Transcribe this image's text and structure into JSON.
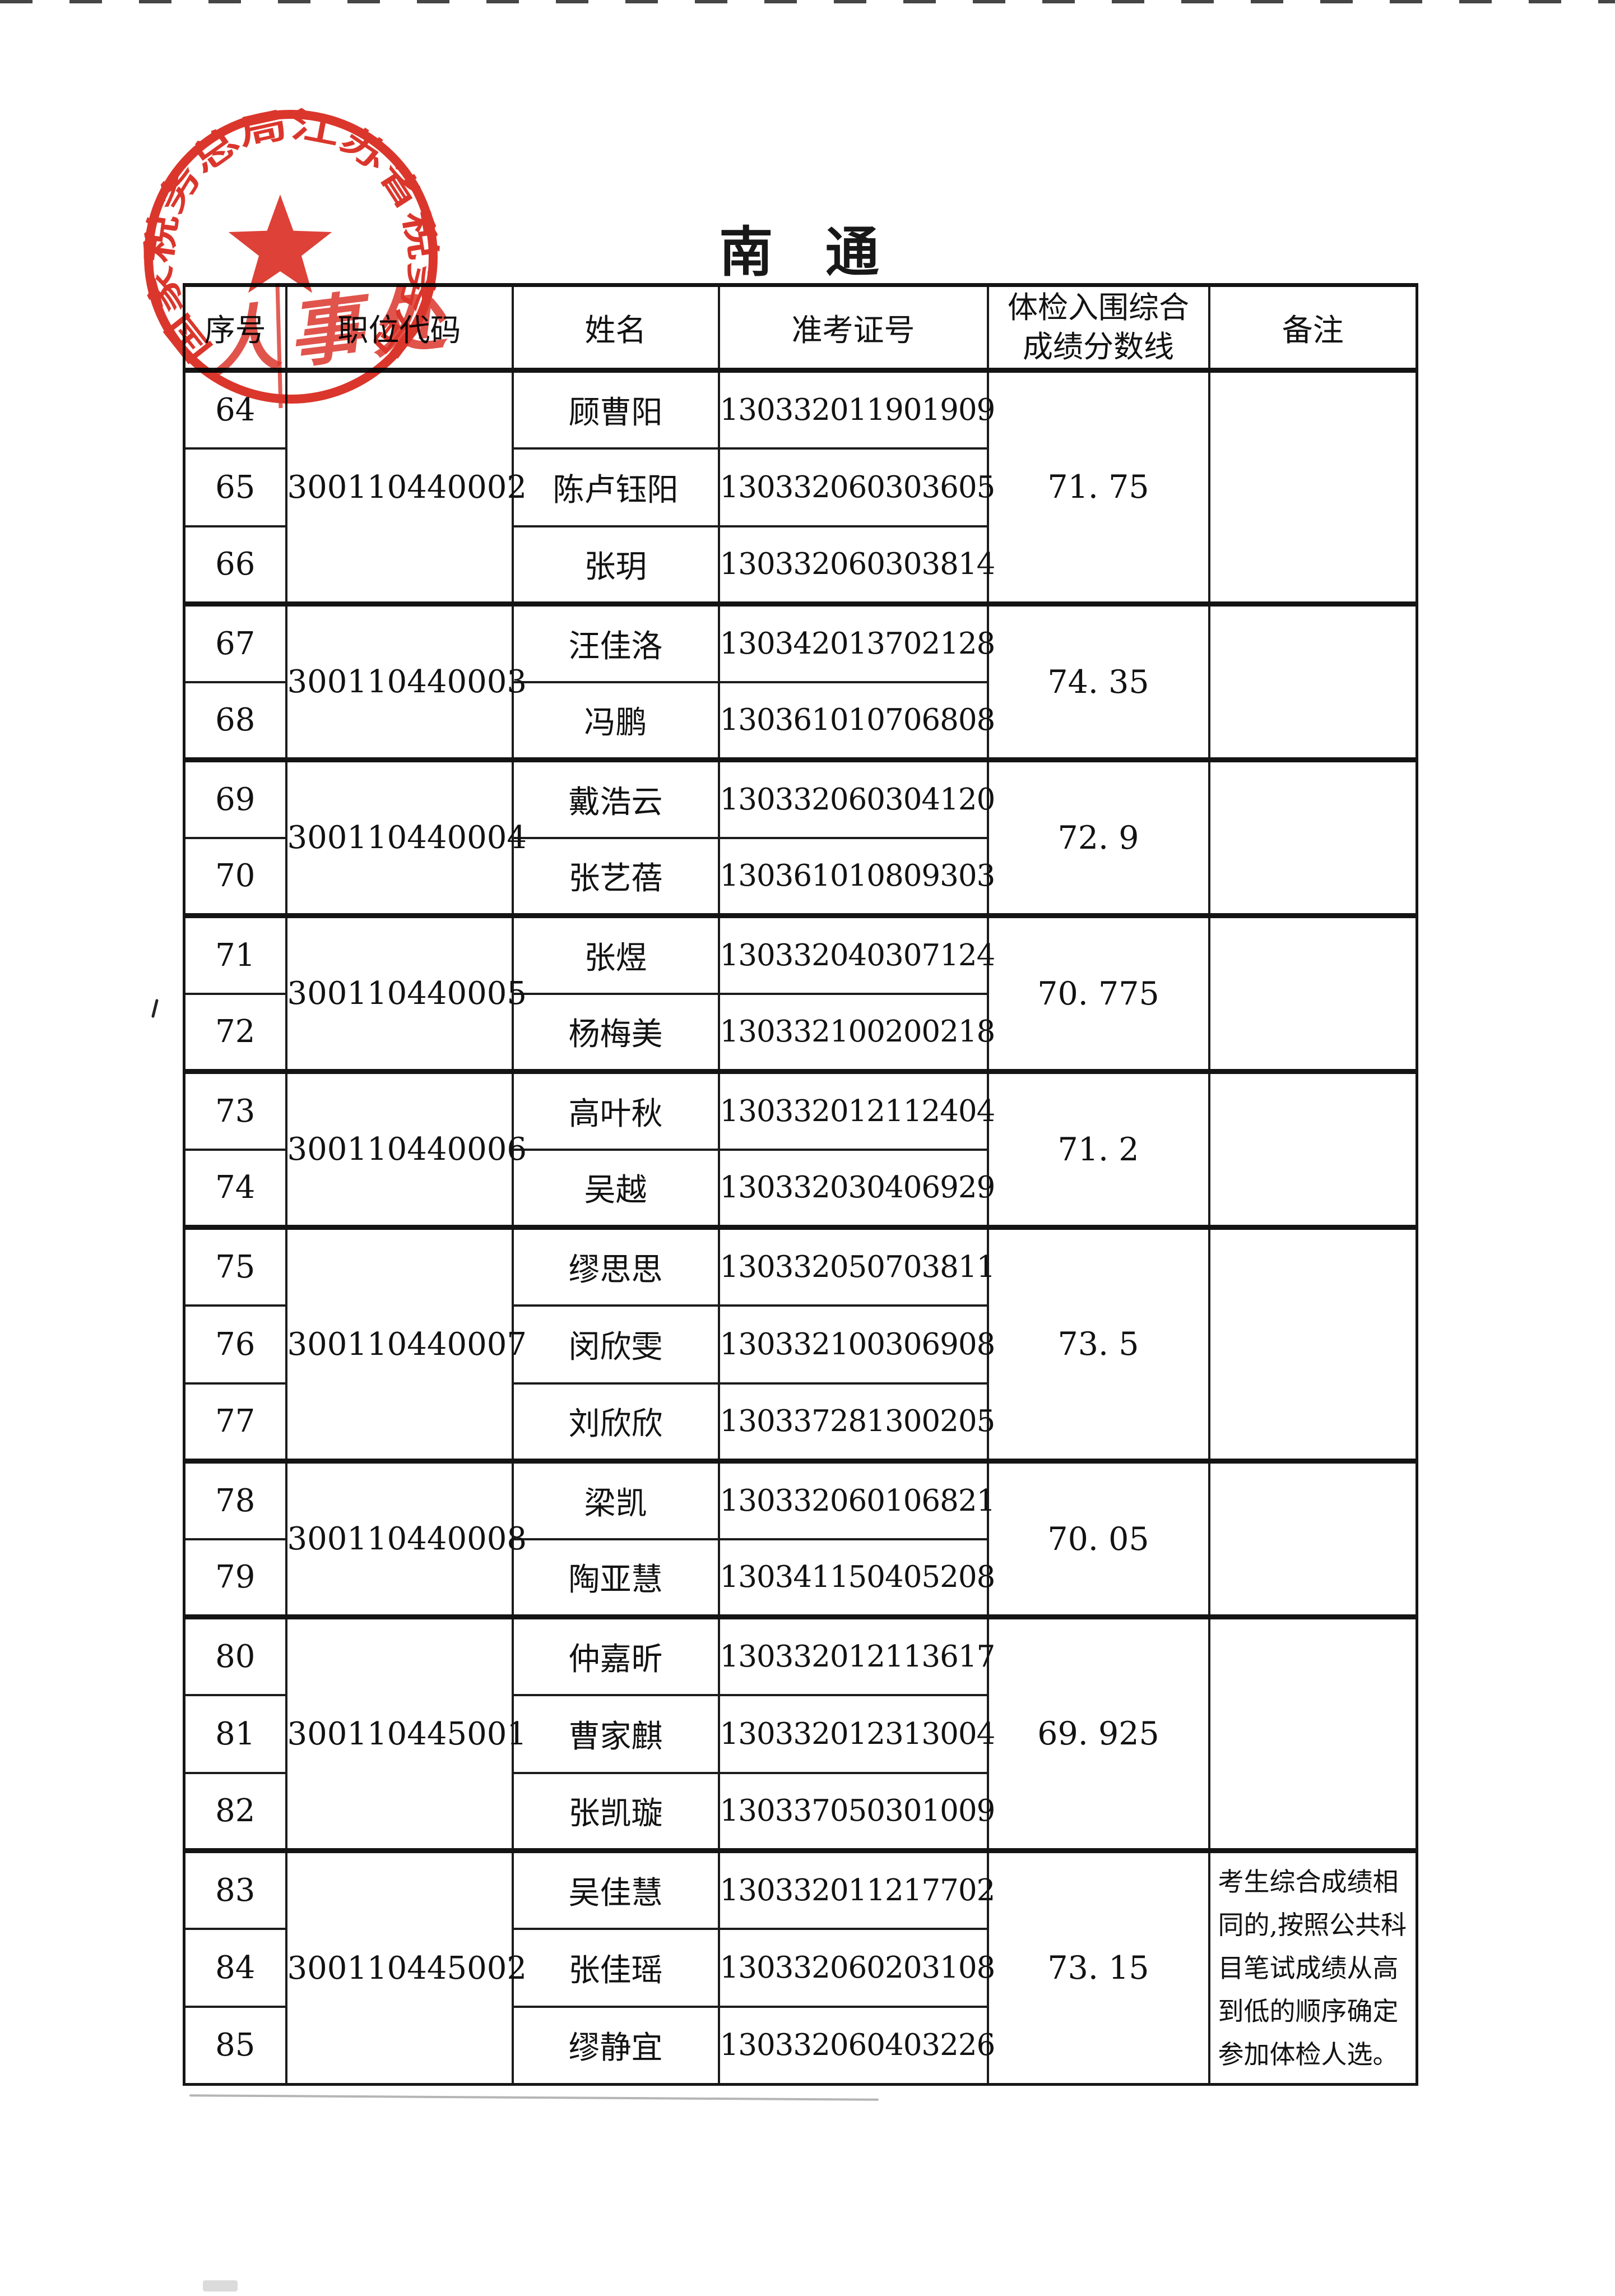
{
  "page": {
    "title": "南 通"
  },
  "seal": {
    "ring_text": "国家税务总局江苏省税务局",
    "center_text": "人事处",
    "color": "#d8251a"
  },
  "table": {
    "headers": {
      "index": "序号",
      "code": "职位代码",
      "name": "姓名",
      "ticket": "准考证号",
      "score_line1": "体检入围综合",
      "score_line2": "成绩分数线",
      "remark": "备注"
    },
    "groups": [
      {
        "code": "300110440002",
        "score": "71. 75",
        "remark_lines": [],
        "rows": [
          {
            "index": "64",
            "name": "顾曹阳",
            "ticket": "130332011901909"
          },
          {
            "index": "65",
            "name": "陈卢钰阳",
            "ticket": "130332060303605"
          },
          {
            "index": "66",
            "name": "张玥",
            "ticket": "130332060303814"
          }
        ]
      },
      {
        "code": "300110440003",
        "score": "74. 35",
        "remark_lines": [],
        "rows": [
          {
            "index": "67",
            "name": "汪佳洛",
            "ticket": "130342013702128"
          },
          {
            "index": "68",
            "name": "冯鹏",
            "ticket": "130361010706808"
          }
        ]
      },
      {
        "code": "300110440004",
        "score": "72. 9",
        "remark_lines": [],
        "rows": [
          {
            "index": "69",
            "name": "戴浩云",
            "ticket": "130332060304120"
          },
          {
            "index": "70",
            "name": "张艺蓓",
            "ticket": "130361010809303"
          }
        ]
      },
      {
        "code": "300110440005",
        "score": "70. 775",
        "remark_lines": [],
        "rows": [
          {
            "index": "71",
            "name": "张煜",
            "ticket": "130332040307124"
          },
          {
            "index": "72",
            "name": "杨梅美",
            "ticket": "130332100200218"
          }
        ]
      },
      {
        "code": "300110440006",
        "score": "71. 2",
        "remark_lines": [],
        "rows": [
          {
            "index": "73",
            "name": "高叶秋",
            "ticket": "130332012112404"
          },
          {
            "index": "74",
            "name": "吴越",
            "ticket": "130332030406929"
          }
        ]
      },
      {
        "code": "300110440007",
        "score": "73. 5",
        "remark_lines": [],
        "rows": [
          {
            "index": "75",
            "name": "缪思思",
            "ticket": "130332050703811"
          },
          {
            "index": "76",
            "name": "闵欣雯",
            "ticket": "130332100306908"
          },
          {
            "index": "77",
            "name": "刘欣欣",
            "ticket": "130337281300205"
          }
        ]
      },
      {
        "code": "300110440008",
        "score": "70. 05",
        "remark_lines": [],
        "rows": [
          {
            "index": "78",
            "name": "梁凯",
            "ticket": "130332060106821"
          },
          {
            "index": "79",
            "name": "陶亚慧",
            "ticket": "130341150405208"
          }
        ]
      },
      {
        "code": "300110445001",
        "score": "69. 925",
        "remark_lines": [],
        "rows": [
          {
            "index": "80",
            "name": "仲嘉昕",
            "ticket": "130332012113617"
          },
          {
            "index": "81",
            "name": "曹家麒",
            "ticket": "130332012313004"
          },
          {
            "index": "82",
            "name": "张凯璇",
            "ticket": "130337050301009"
          }
        ]
      },
      {
        "code": "300110445002",
        "score": "73. 15",
        "remark_lines": [
          "考生综合成绩相",
          "同的,按照公共科",
          "目笔试成绩从高",
          "到低的顺序确定",
          "参加体检人选。"
        ],
        "rows": [
          {
            "index": "83",
            "name": "吴佳慧",
            "ticket": "130332011217702"
          },
          {
            "index": "84",
            "name": "张佳瑶",
            "ticket": "130332060203108"
          },
          {
            "index": "85",
            "name": "缪静宜",
            "ticket": "130332060403226"
          }
        ]
      }
    ]
  }
}
